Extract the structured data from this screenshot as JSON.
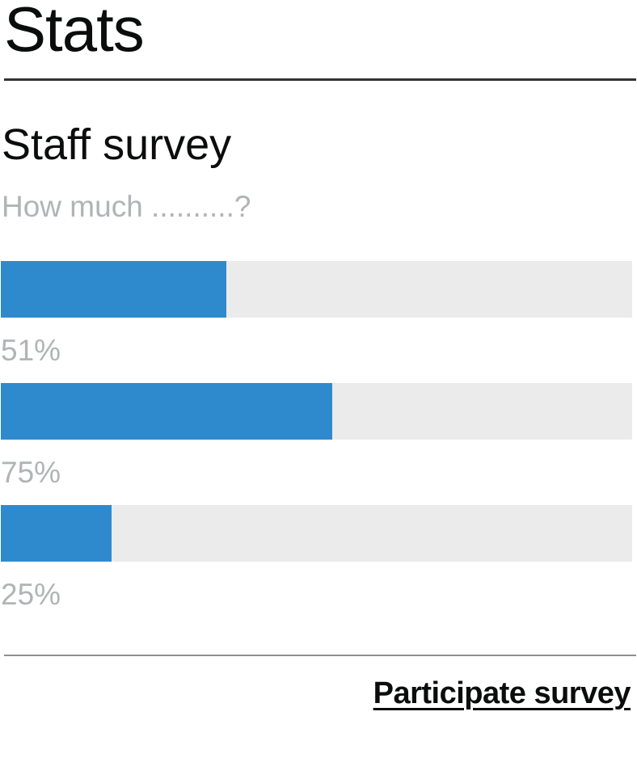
{
  "header": {
    "title": "Stats"
  },
  "survey": {
    "title": "Staff survey",
    "question": "How much ..........?",
    "bar_color": "#2f8acd",
    "track_color": "#ebebeb",
    "results": [
      {
        "value": 51,
        "label": "51%"
      },
      {
        "value": 75,
        "label": "75%"
      },
      {
        "value": 25,
        "label": "25%"
      }
    ]
  },
  "footer": {
    "link_label": "Participate survey"
  }
}
